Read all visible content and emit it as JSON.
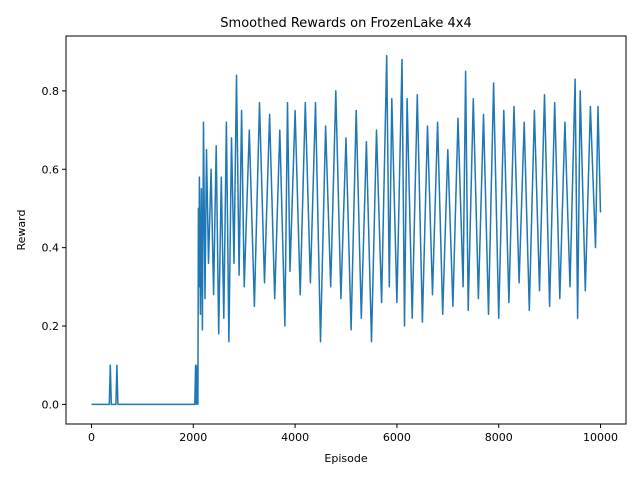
{
  "chart_data": {
    "type": "line",
    "title": "Smoothed Rewards on FrozenLake 4x4",
    "xlabel": "Episode",
    "ylabel": "Reward",
    "xlim": [
      -500,
      10500
    ],
    "ylim": [
      -0.05,
      0.94
    ],
    "xticks": [
      0,
      2000,
      4000,
      6000,
      8000,
      10000
    ],
    "xtick_labels": [
      "0",
      "2000",
      "4000",
      "6000",
      "8000",
      "10000"
    ],
    "yticks": [
      0.0,
      0.2,
      0.4,
      0.6,
      0.8
    ],
    "ytick_labels": [
      "0.0",
      "0.2",
      "0.4",
      "0.6",
      "0.8"
    ],
    "grid": false,
    "legend": "none",
    "series": [
      {
        "color": "#1f77b4",
        "x": [
          0,
          350,
          370,
          390,
          410,
          480,
          500,
          520,
          540,
          2030,
          2045,
          2060,
          2070,
          2080,
          2090,
          2100,
          2110,
          2120,
          2140,
          2160,
          2180,
          2200,
          2230,
          2260,
          2300,
          2350,
          2400,
          2450,
          2500,
          2550,
          2600,
          2650,
          2700,
          2750,
          2800,
          2850,
          2900,
          2950,
          3000,
          3100,
          3200,
          3300,
          3400,
          3500,
          3600,
          3700,
          3800,
          3850,
          3900,
          4000,
          4100,
          4200,
          4300,
          4400,
          4500,
          4600,
          4700,
          4800,
          4900,
          5000,
          5100,
          5200,
          5300,
          5400,
          5500,
          5600,
          5700,
          5800,
          5850,
          5900,
          6000,
          6100,
          6150,
          6200,
          6300,
          6400,
          6500,
          6600,
          6700,
          6800,
          6900,
          7000,
          7100,
          7200,
          7300,
          7350,
          7400,
          7500,
          7600,
          7700,
          7800,
          7900,
          8000,
          8100,
          8200,
          8300,
          8400,
          8500,
          8600,
          8700,
          8800,
          8900,
          9000,
          9100,
          9200,
          9300,
          9400,
          9500,
          9550,
          9600,
          9700,
          9800,
          9900,
          9950,
          10000
        ],
        "y": [
          0.0,
          0.0,
          0.1,
          0.0,
          0.0,
          0.0,
          0.1,
          0.0,
          0.0,
          0.0,
          0.1,
          0.0,
          0.05,
          0.1,
          0.0,
          0.5,
          0.3,
          0.58,
          0.23,
          0.55,
          0.19,
          0.72,
          0.27,
          0.65,
          0.36,
          0.6,
          0.28,
          0.66,
          0.18,
          0.58,
          0.22,
          0.72,
          0.16,
          0.68,
          0.36,
          0.84,
          0.33,
          0.75,
          0.3,
          0.7,
          0.25,
          0.77,
          0.31,
          0.74,
          0.27,
          0.7,
          0.2,
          0.77,
          0.34,
          0.75,
          0.28,
          0.77,
          0.31,
          0.77,
          0.16,
          0.71,
          0.3,
          0.8,
          0.27,
          0.68,
          0.19,
          0.75,
          0.22,
          0.67,
          0.16,
          0.7,
          0.26,
          0.89,
          0.3,
          0.78,
          0.26,
          0.88,
          0.2,
          0.78,
          0.22,
          0.79,
          0.21,
          0.71,
          0.28,
          0.72,
          0.23,
          0.65,
          0.25,
          0.73,
          0.3,
          0.85,
          0.24,
          0.78,
          0.27,
          0.74,
          0.23,
          0.82,
          0.22,
          0.75,
          0.26,
          0.76,
          0.31,
          0.72,
          0.24,
          0.75,
          0.29,
          0.79,
          0.25,
          0.77,
          0.27,
          0.72,
          0.3,
          0.83,
          0.22,
          0.8,
          0.29,
          0.76,
          0.4,
          0.76,
          0.49
        ]
      }
    ]
  }
}
